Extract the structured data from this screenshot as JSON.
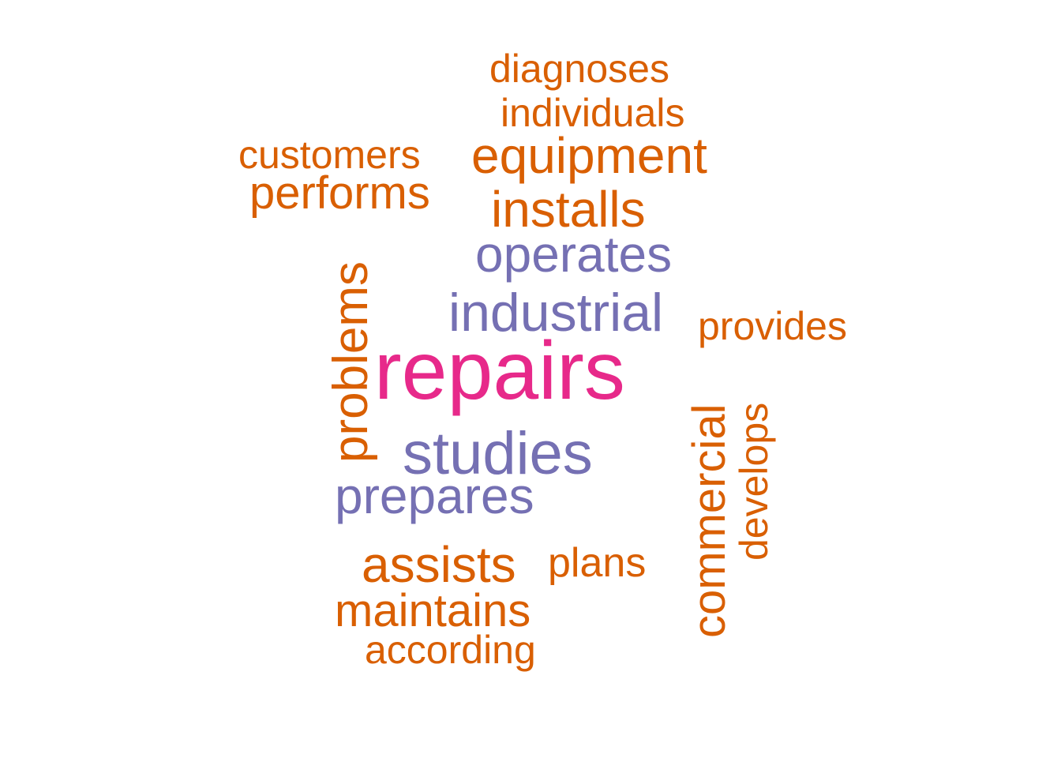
{
  "colors": {
    "primary_word": "#e7298a",
    "secondary_words": "#7570b3",
    "other_words": "#d95f02",
    "background": "#ffffff"
  },
  "words": {
    "diagnoses": "diagnoses",
    "individuals": "individuals",
    "customers": "customers",
    "equipment": "equipment",
    "performs": "performs",
    "installs": "installs",
    "operates": "operates",
    "industrial": "industrial",
    "provides": "provides",
    "repairs": "repairs",
    "studies": "studies",
    "prepares": "prepares",
    "assists": "assists",
    "plans": "plans",
    "maintains": "maintains",
    "according": "according",
    "problems": "problems",
    "commercial": "commercial",
    "develops": "develops"
  }
}
